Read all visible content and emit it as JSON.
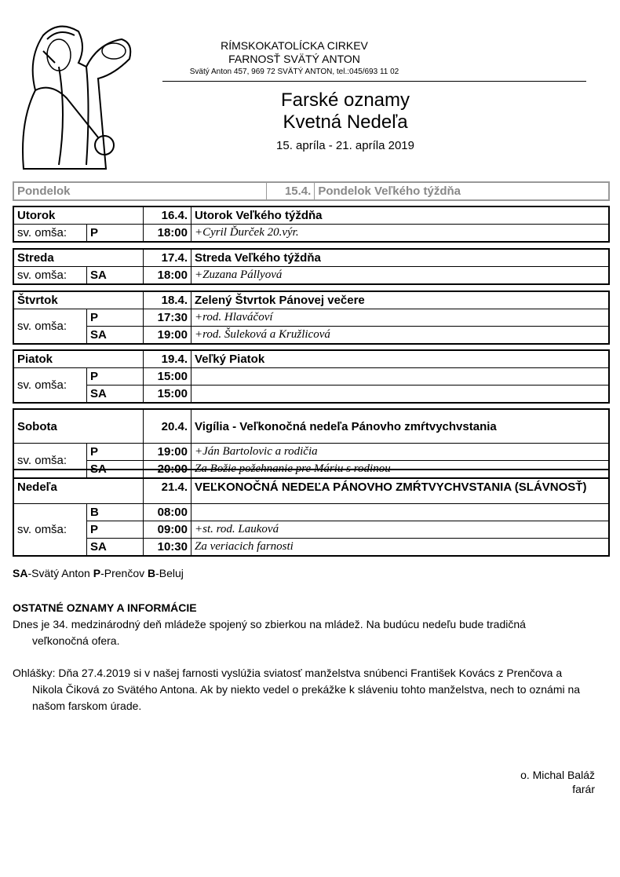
{
  "header": {
    "line1": "RÍMSKOKATOLÍCKA CIRKEV",
    "line2": "FARNOSŤ SVÄTÝ ANTON",
    "address": "Svätý Anton 457, 969 72  SVÄTÝ ANTON, tel.:045/693 11 02",
    "title1": "Farské oznamy",
    "title2": "Kvetná Nedeľa",
    "dates": "15. apríla  - 21. apríla 2019"
  },
  "days": [
    {
      "day": "Pondelok",
      "date": "15.4.",
      "desc": "Pondelok Veľkého týždňa",
      "masses": []
    },
    {
      "day": "Utorok",
      "date": "16.4.",
      "desc": "Utorok Veľkého týždňa",
      "masses": [
        {
          "place": "P",
          "time": "18:00",
          "intent": "+Cyril Ďurček 20.výr."
        }
      ]
    },
    {
      "day": "Streda",
      "date": "17.4.",
      "desc": "Streda Veľkého týždňa",
      "masses": [
        {
          "place": "SA",
          "time": "18:00",
          "intent": "+Zuzana Pállyová"
        }
      ]
    },
    {
      "day": "Štvrtok",
      "date": "18.4.",
      "desc": "Zelený Štvrtok Pánovej večere",
      "masses": [
        {
          "place": "P",
          "time": "17:30",
          "intent": "+rod. Hlaváčoví"
        },
        {
          "place": "SA",
          "time": "19:00",
          "intent": "+rod. Šuleková a Kružlicová"
        }
      ]
    },
    {
      "day": "Piatok",
      "date": "19.4.",
      "desc": "Veľký Piatok",
      "masses": [
        {
          "place": "P",
          "time": "15:00",
          "intent": ""
        },
        {
          "place": "SA",
          "time": "15:00",
          "intent": ""
        }
      ]
    },
    {
      "day": "Sobota",
      "date": "20.4.",
      "desc": "Vigília - Veľkonočná nedeľa Pánovho zmŕtvychvstania",
      "masses": [
        {
          "place": "P",
          "time": "19:00",
          "intent": "+Ján Bartolovic a rodičia"
        },
        {
          "place": "SA",
          "time": "20:00",
          "intent": "Za Božie požehnanie pre Máriu s rodinou"
        }
      ]
    },
    {
      "day": "Nedeľa",
      "date": "21.4.",
      "desc": "VEĽKONOČNÁ NEDEĽA PÁNOVHO ZMŔTVYCHVSTANIA (SLÁVNOSŤ)",
      "masses": [
        {
          "place": "B",
          "time": "08:00",
          "intent": ""
        },
        {
          "place": "P",
          "time": "09:00",
          "intent": "+st. rod. Lauková"
        },
        {
          "place": "SA",
          "time": "10:30",
          "intent": "Za veriacich farnosti"
        }
      ]
    }
  ],
  "mass_label": "sv. omša:",
  "legend": [
    {
      "code": "SA",
      "name": "-Svätý Anton "
    },
    {
      "code": "P",
      "name": "-Prenčov "
    },
    {
      "code": "B",
      "name": "-Beluj"
    }
  ],
  "other": {
    "heading": "OSTATNÉ OZNAMY A INFORMÁCIE",
    "p1a": "Dnes je 34. medzinárodný deň mládeže spojený so zbierkou na mládež. Na budúcu nedeľu bude tradičná",
    "p1b": "veľkonočná ofera.",
    "p2a": "Ohlášky: Dňa 27.4.2019 si v našej farnosti vyslúžia sviatosť manželstva snúbenci František Kovács z Prenčova a",
    "p2b": "Nikola Čiková zo Svätého Antona. Ak by niekto vedel o prekážke k sláveniu tohto manželstva, nech to oznámi na",
    "p2c": "našom farskom úrade."
  },
  "signature": {
    "name": "o. Michal Baláž",
    "role": "farár"
  }
}
